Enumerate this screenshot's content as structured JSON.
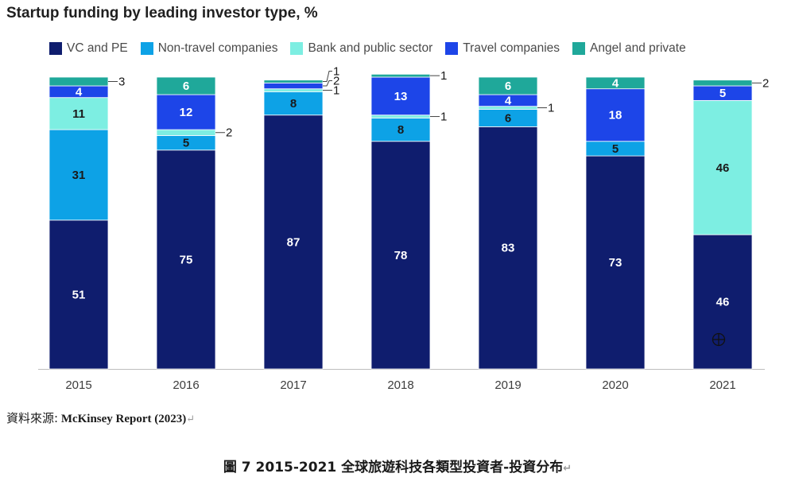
{
  "chart_data": {
    "type": "bar",
    "stacked": true,
    "title": "Startup funding by leading investor type, %",
    "categories": [
      "2015",
      "2016",
      "2017",
      "2018",
      "2019",
      "2020",
      "2021"
    ],
    "series": [
      {
        "name": "VC and PE",
        "color": "#0f1d6e",
        "values": [
          51,
          75,
          87,
          78,
          83,
          73,
          46
        ]
      },
      {
        "name": "Non-travel companies",
        "color": "#0da2e6",
        "values": [
          31,
          5,
          8,
          8,
          6,
          5,
          0
        ]
      },
      {
        "name": "Bank and public sector",
        "color": "#7deee2",
        "values": [
          11,
          2,
          1,
          1,
          1,
          0,
          46
        ]
      },
      {
        "name": "Travel companies",
        "color": "#1d45e8",
        "values": [
          4,
          12,
          2,
          13,
          4,
          18,
          5
        ]
      },
      {
        "name": "Angel and private",
        "color": "#1fa89a",
        "values": [
          3,
          6,
          1,
          1,
          6,
          4,
          2
        ]
      }
    ],
    "ylim": [
      0,
      100
    ],
    "grid": false,
    "legend_position": "top"
  },
  "source": {
    "label": "資料來源:",
    "text": "McKinsey Report (2023)",
    "mark": "↵"
  },
  "caption": {
    "text": "圖 7 2015-2021 全球旅遊科技各類型投資者-投資分布",
    "mark": "↵"
  },
  "cursor_icon": "crosshair-circle-icon"
}
